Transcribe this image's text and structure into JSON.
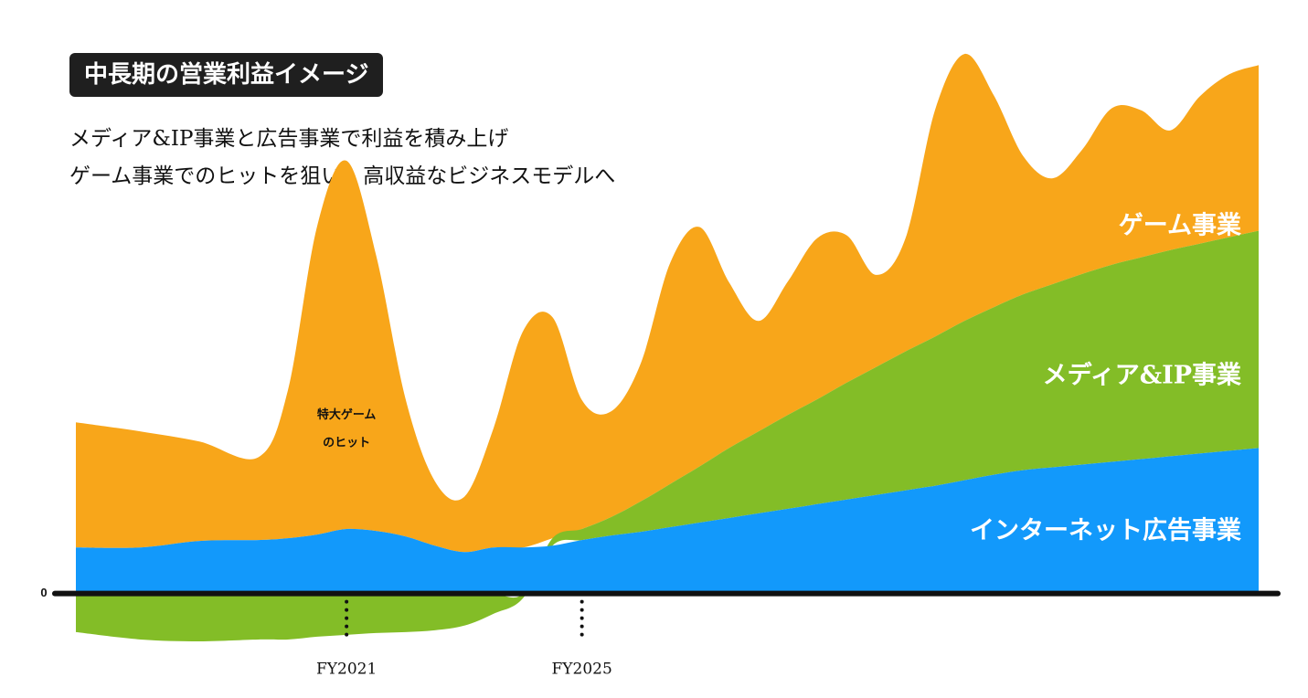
{
  "title": "中長期の営業利益イメージ",
  "subtitle_lines": [
    "メディア&IP事業と広告事業で利益を積み上げ",
    "ゲーム事業でのヒットを狙い、高収益なビジネスモデルへ"
  ],
  "colors": {
    "game": "#f8a61a",
    "media": "#83bd27",
    "ad": "#1299fb",
    "axis": "#111111",
    "title_bg": "#1f1f1f"
  },
  "chart_data": {
    "type": "area",
    "stacked": true,
    "zero_label": "0",
    "x_tick_labels": [
      {
        "label": "FY2021",
        "x": 2021
      },
      {
        "label": "FY2025",
        "x": 2025
      }
    ],
    "x_range": [
      2016.4,
      2036.5
    ],
    "y_range": [
      -55,
      600
    ],
    "x": [
      2016.4,
      2017.5,
      2018.5,
      2019.5,
      2020.0,
      2020.5,
      2021.0,
      2021.5,
      2022.0,
      2022.5,
      2023.0,
      2023.5,
      2024.0,
      2024.5,
      2025.0,
      2025.5,
      2026.0,
      2026.5,
      2027.0,
      2027.5,
      2028.0,
      2028.5,
      2029.0,
      2029.5,
      2030.0,
      2030.5,
      2031.0,
      2031.5,
      2032.0,
      2032.5,
      2033.0,
      2033.5,
      2034.0,
      2034.5,
      2035.0,
      2035.5,
      2036.0,
      2036.5
    ],
    "series": [
      {
        "name": "インターネット広告事業",
        "label": "インターネット広告事業",
        "values": [
          50,
          50,
          57,
          58,
          60,
          64,
          70,
          68,
          62,
          52,
          45,
          50,
          50,
          52,
          58,
          63,
          67,
          72,
          77,
          82,
          87,
          92,
          97,
          102,
          107,
          112,
          117,
          123,
          129,
          134,
          137,
          140,
          143,
          146,
          149,
          152,
          155,
          158
        ]
      },
      {
        "name": "メディア&IP事業",
        "label": "メディア&IP事業",
        "values": [
          -42,
          -50,
          -52,
          -50,
          -50,
          -47,
          -45,
          -43,
          -42,
          -40,
          -35,
          -22,
          -5,
          8,
          12,
          20,
          33,
          47,
          61,
          76,
          89,
          102,
          114,
          127,
          139,
          151,
          162,
          173,
          182,
          191,
          199,
          207,
          214,
          219,
          224,
          228,
          232,
          236
        ]
      },
      {
        "name": "ゲーム事業",
        "label": "ゲーム事業",
        "values": [
          136,
          126,
          108,
          90,
          160,
          335,
          400,
          300,
          150,
          70,
          60,
          130,
          235,
          240,
          140,
          115,
          150,
          240,
          260,
          180,
          120,
          145,
          175,
          160,
          100,
          123,
          246,
          290,
          230,
          150,
          115,
          135,
          170,
          160,
          130,
          160,
          177,
          180
        ]
      }
    ],
    "annotations": [
      {
        "text": "特大ゲーム",
        "x": 2021,
        "y": 190
      },
      {
        "text": "のヒット",
        "x": 2021,
        "y": 160
      }
    ]
  }
}
